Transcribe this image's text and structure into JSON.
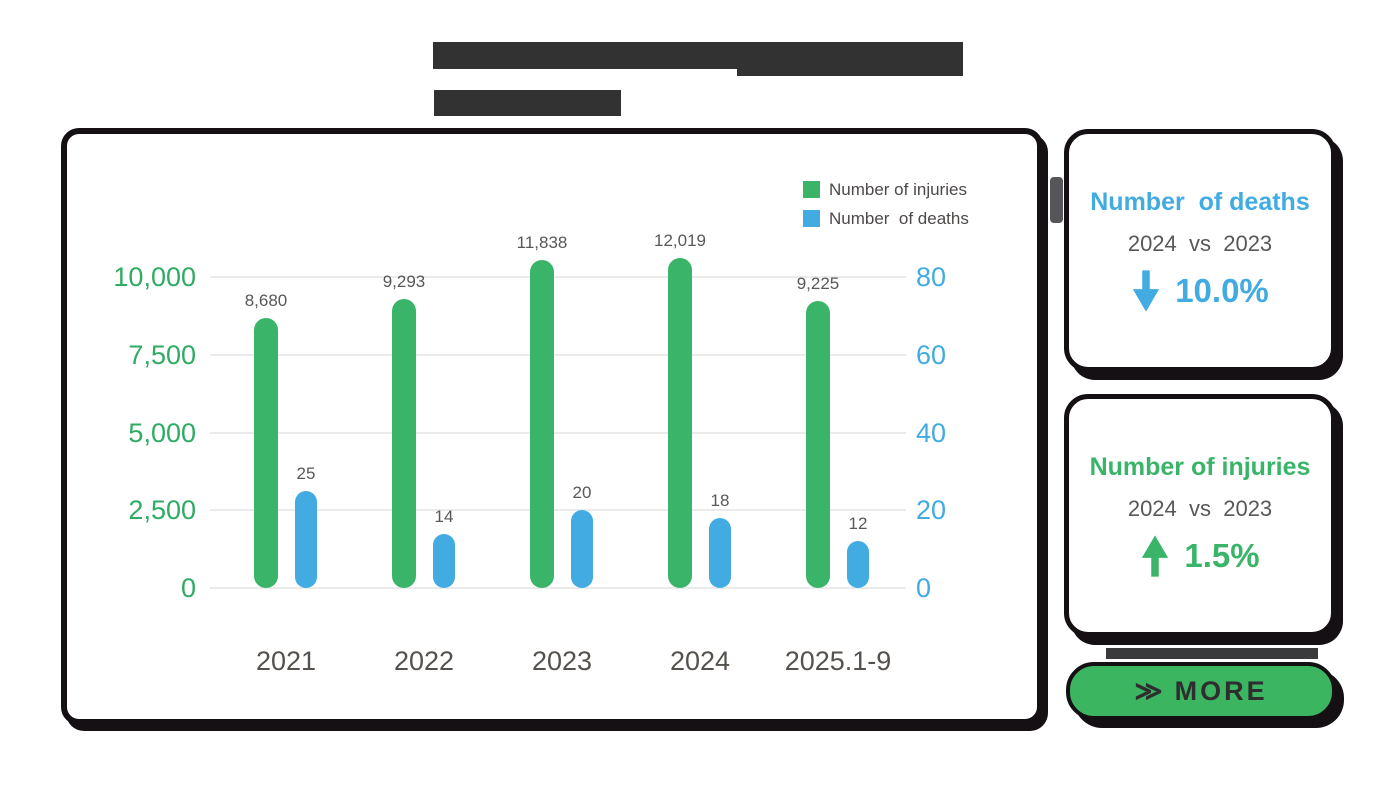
{
  "colors": {
    "green": "#3ab469",
    "blue": "#41abe2",
    "dark_border": "#141014",
    "redaction": "#323232",
    "gray_text": "#595757",
    "gridline": "#ebebeb"
  },
  "chart_data": {
    "type": "bar",
    "title": "",
    "categories": [
      "2021",
      "2022",
      "2023",
      "2024",
      "2025.1-9"
    ],
    "series": [
      {
        "name": "Number of injuries",
        "axis": "left",
        "color": "#3ab469",
        "values": [
          8680,
          9293,
          11838,
          12019,
          9225
        ],
        "value_labels": [
          "8,680",
          "9,293",
          "11,838",
          "12,019",
          "9,225"
        ]
      },
      {
        "name": "Number  of deaths",
        "axis": "right",
        "color": "#41abe2",
        "values": [
          25,
          14,
          20,
          18,
          12
        ],
        "value_labels": [
          "25",
          "14",
          "20",
          "18",
          "12"
        ]
      }
    ],
    "left_axis": {
      "ticks": [
        "0",
        "2,500",
        "5,000",
        "7,500",
        "10,000"
      ],
      "min": 0,
      "max": 10000,
      "color": "#2fab63"
    },
    "right_axis": {
      "ticks": [
        "0",
        "20",
        "40",
        "60",
        "80"
      ],
      "min": 0,
      "max": 80,
      "color": "#41abe2"
    },
    "grid": true,
    "legend_position": "top-right"
  },
  "stat_cards": [
    {
      "title": "Number  of deaths",
      "subtitle": "2024  vs  2023",
      "direction": "down",
      "value": "10.0%"
    },
    {
      "title": "Number of injuries",
      "subtitle": "2024  vs  2023",
      "direction": "up",
      "value": "1.5%"
    }
  ],
  "more_button": {
    "chevron": "≫",
    "label": "MORE"
  }
}
